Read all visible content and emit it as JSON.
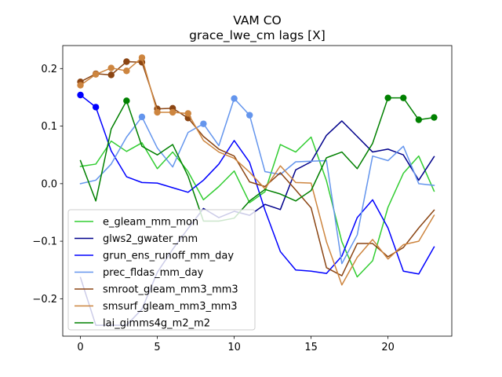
{
  "chart_data": {
    "type": "line",
    "title": "VAM CO",
    "subtitle": "grace_lwe_cm lags [X]",
    "xlabel": "",
    "ylabel": "",
    "xlim": [
      -1.15,
      24.15
    ],
    "ylim": [
      -0.265,
      0.24
    ],
    "xticks": [
      0,
      5,
      10,
      15,
      20
    ],
    "yticks": [
      -0.2,
      -0.1,
      0.0,
      0.1,
      0.2
    ],
    "x_tick_labels": [
      "0",
      "5",
      "10",
      "15",
      "20"
    ],
    "y_tick_labels": [
      "−0.2",
      "−0.1",
      "0.0",
      "0.1",
      "0.2"
    ],
    "legend_position": "lower-left",
    "grid": false,
    "x": [
      0,
      1,
      2,
      3,
      4,
      5,
      6,
      7,
      8,
      9,
      10,
      11,
      12,
      13,
      14,
      15,
      16,
      17,
      18,
      19,
      20,
      21,
      22,
      23
    ],
    "series": [
      {
        "name": "e_gleam_mm_mon",
        "color": "#32cd32",
        "values": [
          0.03,
          0.034,
          0.074,
          0.056,
          0.071,
          0.026,
          0.055,
          0.021,
          -0.028,
          -0.005,
          0.022,
          -0.033,
          -0.014,
          0.068,
          0.055,
          0.081,
          0.005,
          -0.101,
          -0.162,
          -0.134,
          -0.041,
          0.018,
          0.048,
          -0.013
        ],
        "markers": []
      },
      {
        "name": "glws2_gwater_mm",
        "color": "#00008b",
        "values": [
          -0.163,
          -0.246,
          -0.246,
          -0.246,
          -0.218,
          -0.154,
          -0.114,
          -0.078,
          -0.043,
          -0.059,
          -0.048,
          -0.055,
          -0.036,
          -0.045,
          0.024,
          0.038,
          0.084,
          0.109,
          0.082,
          0.055,
          0.06,
          0.05,
          0.006,
          0.047
        ],
        "markers": []
      },
      {
        "name": "grun_ens_runoff_mm_day",
        "color": "#0000ff",
        "values": [
          0.154,
          0.133,
          0.057,
          0.012,
          0.002,
          0.001,
          -0.007,
          -0.015,
          0.006,
          0.034,
          0.075,
          0.037,
          -0.046,
          -0.118,
          -0.15,
          -0.152,
          -0.156,
          -0.126,
          -0.059,
          -0.028,
          -0.077,
          -0.152,
          -0.157,
          -0.11
        ],
        "markers": [
          0,
          1
        ]
      },
      {
        "name": "prec_fldas_mm_day",
        "color": "#6495ed",
        "values": [
          0.0,
          0.006,
          0.034,
          0.081,
          0.116,
          0.062,
          0.029,
          0.089,
          0.104,
          0.066,
          0.148,
          0.119,
          0.021,
          0.016,
          0.038,
          0.039,
          0.04,
          -0.139,
          -0.089,
          0.048,
          0.04,
          0.065,
          0.0,
          -0.003
        ],
        "markers": [
          4,
          8,
          10,
          11
        ]
      },
      {
        "name": "smroot_gleam_mm3_mm3",
        "color": "#8b4513",
        "values": [
          0.177,
          0.191,
          0.189,
          0.212,
          0.211,
          0.13,
          0.131,
          0.114,
          0.082,
          0.06,
          0.048,
          0.003,
          -0.005,
          0.019,
          -0.011,
          -0.042,
          -0.146,
          -0.16,
          -0.104,
          -0.104,
          -0.127,
          -0.111,
          -0.077,
          -0.046
        ],
        "markers": [
          0,
          1,
          2,
          3,
          4,
          5,
          6,
          7
        ]
      },
      {
        "name": "smsurf_gleam_mm3_mm3",
        "color": "#cd853f",
        "values": [
          0.171,
          0.19,
          0.201,
          0.196,
          0.219,
          0.124,
          0.124,
          0.122,
          0.075,
          0.055,
          0.044,
          0.02,
          -0.009,
          0.031,
          0.002,
          0.001,
          -0.101,
          -0.176,
          -0.128,
          -0.097,
          -0.131,
          -0.106,
          -0.1,
          -0.055
        ],
        "markers": [
          0,
          1,
          2,
          3,
          4,
          5,
          6,
          7
        ]
      },
      {
        "name": "lai_gimms4g_m2_m2",
        "color": "#008000",
        "values": [
          0.04,
          -0.03,
          0.095,
          0.144,
          0.065,
          0.05,
          0.068,
          0.013,
          -0.065,
          -0.065,
          -0.06,
          -0.03,
          -0.01,
          -0.018,
          -0.03,
          -0.012,
          0.045,
          0.055,
          0.026,
          0.07,
          0.149,
          0.149,
          0.111,
          0.115
        ],
        "markers": [
          3,
          20,
          21,
          22,
          23
        ]
      }
    ]
  }
}
